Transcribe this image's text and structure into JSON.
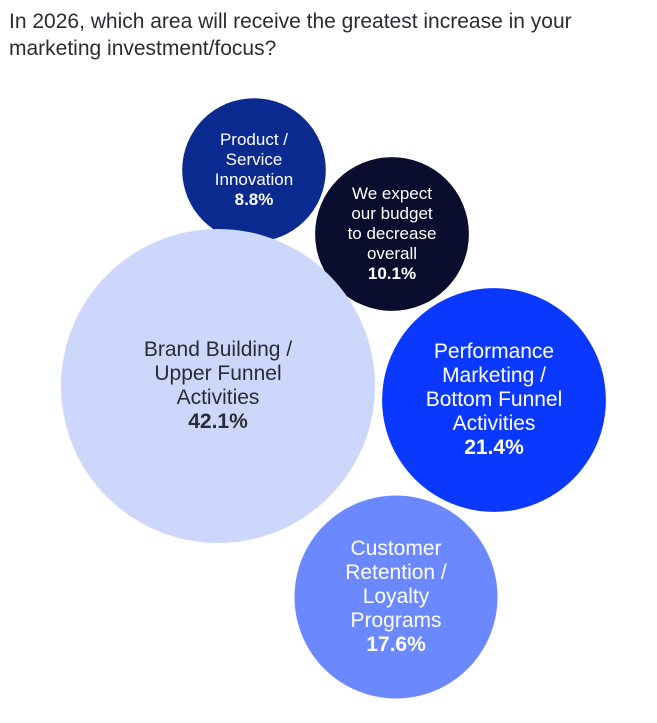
{
  "page": {
    "title": "In 2026, which area will receive the greatest increase in your marketing investment/focus?"
  },
  "chart_data": {
    "type": "bubble",
    "title": "In 2026, which area will receive the greatest increase in your marketing investment/focus?",
    "series": [
      {
        "name": "Product / Service Innovation",
        "lines": [
          "Product /",
          "Service",
          "Innovation"
        ],
        "value": 8.8,
        "value_label": "8.8%",
        "color": "#0a2a8f",
        "text_color": "#ffffff"
      },
      {
        "name": "We expect our budget to decrease overall",
        "lines": [
          "We expect",
          "our budget",
          "to decrease",
          "overall"
        ],
        "value": 10.1,
        "value_label": "10.1%",
        "color": "#0a0d2e",
        "text_color": "#ffffff"
      },
      {
        "name": "Brand Building / Upper Funnel Activities",
        "lines": [
          "Brand Building /",
          "Upper Funnel",
          "Activities"
        ],
        "value": 42.1,
        "value_label": "42.1%",
        "color": "#ccd7fb",
        "text_color": "#2b2b33"
      },
      {
        "name": "Performance Marketing / Bottom Funnel Activities",
        "lines": [
          "Performance",
          "Marketing /",
          "Bottom Funnel",
          "Activities"
        ],
        "value": 21.4,
        "value_label": "21.4%",
        "color": "#0a38ff",
        "text_color": "#ffffff"
      },
      {
        "name": "Customer Retention / Loyalty Programs",
        "lines": [
          "Customer",
          "Retention /",
          "Loyalty",
          "Programs"
        ],
        "value": 17.6,
        "value_label": "17.6%",
        "color": "#6b88ff",
        "text_color": "#ffffff"
      }
    ]
  }
}
